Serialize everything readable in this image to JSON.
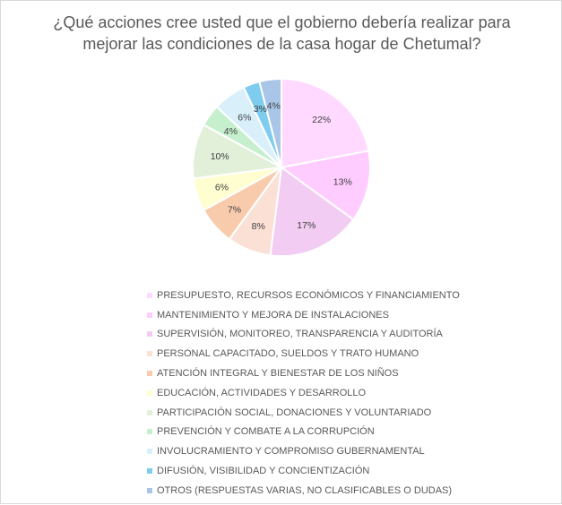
{
  "chart_data": {
    "type": "pie",
    "title_lines": [
      "¿Qué acciones cree usted que el gobierno debería realizar para",
      "mejorar las condiciones de la casa hogar de Chetumal?"
    ],
    "categories": [
      "PRESUPUESTO, RECURSOS ECONÓMICOS Y FINANCIAMIENTO",
      "MANTENIMIENTO Y MEJORA DE INSTALACIONES",
      "SUPERVISIÓN, MONITOREO, TRANSPARENCIA Y AUDITORÍA",
      "PERSONAL CAPACITADO, SUELDOS Y TRATO HUMANO",
      "ATENCIÓN INTEGRAL Y BIENESTAR DE LOS NIÑOS",
      "EDUCACIÓN, ACTIVIDADES Y DESARROLLO",
      "PARTICIPACIÓN SOCIAL, DONACIONES Y VOLUNTARIADO",
      "PREVENCIÓN Y COMBATE A LA CORRUPCIÓN",
      "INVOLUCRAMIENTO Y COMPROMISO GUBERNAMENTAL",
      "DIFUSIÓN, VISIBILIDAD Y CONCIENTIZACIÓN",
      "OTROS (RESPUESTAS VARIAS, NO CLASIFICABLES O DUDAS)"
    ],
    "values": [
      22,
      13,
      17,
      8,
      7,
      6,
      10,
      4,
      6,
      3,
      4
    ],
    "data_labels": [
      "22%",
      "13%",
      "17%",
      "8%",
      "7%",
      "6%",
      "10%",
      "4%",
      "6%",
      "3%",
      "4%"
    ],
    "colors": [
      "#ffd9ff",
      "#ffccff",
      "#f2ccf2",
      "#fbe0d6",
      "#f8cbad",
      "#fefed0",
      "#e2f0d9",
      "#c6efce",
      "#d9f0fb",
      "#7fcdee",
      "#a9c6e8"
    ],
    "legend_position": "bottom",
    "start_angle_deg": 0,
    "direction": "clockwise"
  }
}
